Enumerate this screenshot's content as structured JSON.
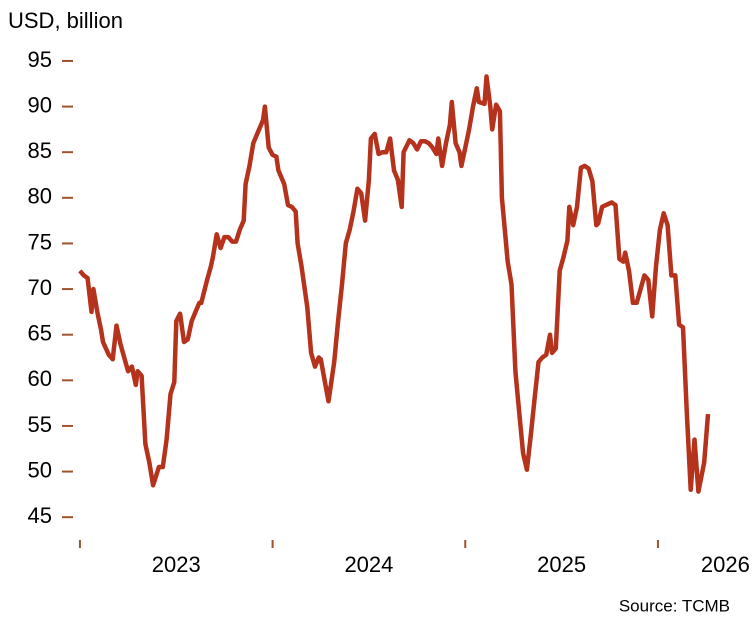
{
  "chart_data": {
    "type": "line",
    "ylabel": "USD, billion",
    "source": "Source: TCMB",
    "xlim": [
      2022.99,
      2026.4
    ],
    "xticks": [
      2023,
      2024,
      2025,
      2026
    ],
    "xtick_labels": [
      {
        "value": 2023.5,
        "label": "2023"
      },
      {
        "value": 2024.5,
        "label": "2024"
      },
      {
        "value": 2025.5,
        "label": "2025"
      },
      {
        "value": 2026.35,
        "label": "2026"
      }
    ],
    "ylim": [
      42.5,
      96.2
    ],
    "yticks": [
      45,
      50,
      55,
      60,
      65,
      70,
      75,
      80,
      85,
      90,
      95
    ],
    "grid": false,
    "series": [
      {
        "color": "#b5321c",
        "x": [
          2023.0,
          2023.02,
          2023.04,
          2023.06,
          2023.07,
          2023.09,
          2023.11,
          2023.12,
          2023.15,
          2023.17,
          2023.19,
          2023.21,
          2023.23,
          2023.25,
          2023.27,
          2023.29,
          2023.3,
          2023.32,
          2023.34,
          2023.36,
          2023.38,
          2023.41,
          2023.43,
          2023.45,
          2023.47,
          2023.49,
          2023.5,
          2023.52,
          2023.54,
          2023.56,
          2023.58,
          2023.6,
          2023.62,
          2023.63,
          2023.66,
          2023.68,
          2023.69,
          2023.71,
          2023.73,
          2023.75,
          2023.77,
          2023.79,
          2023.81,
          2023.83,
          2023.85,
          2023.86,
          2023.88,
          2023.9,
          2023.93,
          2023.95,
          2023.96,
          2023.98,
          2024.0,
          2024.02,
          2024.03,
          2024.06,
          2024.08,
          2024.1,
          2024.12,
          2024.13,
          2024.15,
          2024.18,
          2024.2,
          2024.22,
          2024.24,
          2024.25,
          2024.27,
          2024.29,
          2024.32,
          2024.34,
          2024.36,
          2024.38,
          2024.4,
          2024.42,
          2024.44,
          2024.46,
          2024.48,
          2024.5,
          2024.51,
          2024.53,
          2024.55,
          2024.57,
          2024.59,
          2024.61,
          2024.63,
          2024.65,
          2024.67,
          2024.68,
          2024.71,
          2024.73,
          2024.75,
          2024.77,
          2024.79,
          2024.81,
          2024.83,
          2024.85,
          2024.86,
          2024.88,
          2024.9,
          2024.92,
          2024.93,
          2024.95,
          2024.97,
          2024.98,
          2025.0,
          2025.02,
          2025.04,
          2025.06,
          2025.07,
          2025.1,
          2025.11,
          2025.13,
          2025.14,
          2025.16,
          2025.18,
          2025.19,
          2025.22,
          2025.24,
          2025.26,
          2025.28,
          2025.3,
          2025.32,
          2025.34,
          2025.36,
          2025.38,
          2025.4,
          2025.42,
          2025.44,
          2025.45,
          2025.47,
          2025.49,
          2025.51,
          2025.53,
          2025.54,
          2025.56,
          2025.58,
          2025.6,
          2025.62,
          2025.64,
          2025.66,
          2025.68,
          2025.69,
          2025.71,
          2025.74,
          2025.76,
          2025.78,
          2025.8,
          2025.82,
          2025.83,
          2025.85,
          2025.87,
          2025.89,
          2025.91,
          2025.93,
          2025.95,
          2025.97,
          2025.99,
          2026.01,
          2026.03,
          2026.05,
          2026.07,
          2026.09,
          2026.11,
          2026.13,
          2026.15,
          2026.17,
          2026.19,
          2026.21,
          2026.24,
          2026.26
        ],
        "values": [
          72,
          71.5,
          71.2,
          67.5,
          70,
          67.5,
          65.5,
          64.2,
          62.8,
          62.3,
          66,
          64,
          62.5,
          61,
          61.5,
          59.5,
          61,
          60.5,
          53,
          51,
          48.5,
          50.5,
          50.5,
          53.5,
          58.5,
          59.8,
          66.5,
          67.3,
          64.2,
          64.5,
          66.5,
          67.5,
          68.5,
          68.5,
          71,
          72.5,
          73.5,
          76,
          74.5,
          75.7,
          75.7,
          75.2,
          75.2,
          76.5,
          77.5,
          81.5,
          83.5,
          86,
          87.5,
          88.5,
          90,
          85.5,
          84.7,
          84.5,
          83,
          81.5,
          79.2,
          79,
          78.5,
          75,
          72.5,
          68,
          63,
          61.5,
          62.5,
          62.3,
          60,
          57.7,
          62,
          66.5,
          70.5,
          75,
          76.5,
          78.5,
          81,
          80.5,
          77.5,
          82,
          86.5,
          87,
          84.8,
          85,
          85,
          86.5,
          83,
          82,
          79,
          85,
          86.3,
          86,
          85.3,
          86.2,
          86.2,
          86,
          85.5,
          84.8,
          86.5,
          83.5,
          86,
          88,
          90.5,
          86,
          85,
          83.5,
          85.5,
          87.5,
          90,
          92,
          90.5,
          90.3,
          93.3,
          90,
          87.5,
          90.2,
          89.5,
          80,
          73,
          70.5,
          61,
          56.5,
          52,
          50.2,
          54,
          58,
          62,
          62.5,
          62.8,
          65,
          63,
          63.5,
          72,
          73.5,
          75.3,
          79,
          77,
          79,
          83.3,
          83.5,
          83.2,
          81.8,
          77,
          77.2,
          79,
          79.3,
          79.5,
          79.2,
          73.3,
          73,
          74,
          72,
          68.5,
          68.5,
          70,
          71.5,
          71,
          67,
          72.5,
          76.5,
          78.3,
          77,
          71.5,
          71.5,
          66.1,
          65.8,
          56.5,
          48,
          53.5,
          47.8,
          51,
          56.3
        ]
      }
    ]
  }
}
